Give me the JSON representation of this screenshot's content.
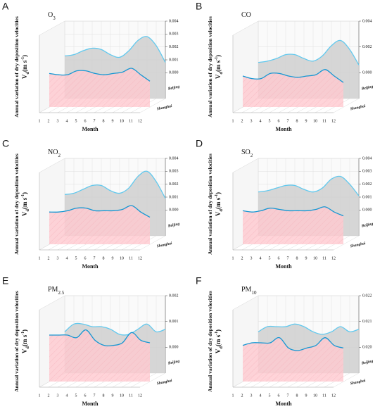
{
  "chart_data": [
    {
      "type": "line",
      "panel": "A",
      "title": {
        "text": "O",
        "sub": "3"
      },
      "xlabel": "Month",
      "ylabel": "Annual variation of dry deposition velocities",
      "zlabel": {
        "text": "V",
        "sub": "d",
        "unit": "(m s",
        "sup": "-1",
        "close": ")"
      },
      "categories": [
        1,
        2,
        3,
        4,
        5,
        6,
        7,
        8,
        9,
        10,
        11,
        12
      ],
      "series": [
        {
          "name": "Beijing",
          "color": "#62c9ee",
          "fill": "#cfcfcf",
          "values": [
            0.0013,
            0.0014,
            0.0017,
            0.0019,
            0.0018,
            0.0014,
            0.0012,
            0.0017,
            0.0025,
            0.0028,
            0.0021,
            0.0008
          ]
        },
        {
          "name": "Shanghai",
          "color": "#1597d3",
          "fill": "#ffc9cf",
          "values": [
            0.0006,
            0.0005,
            0.0005,
            0.0008,
            0.0008,
            0.0006,
            0.0005,
            0.0006,
            0.0007,
            0.001,
            0.0005,
            0.0
          ]
        }
      ],
      "ylim": [
        -0.002,
        0.004
      ],
      "yticks": [
        {
          "value": 0,
          "label": "0.000"
        },
        {
          "value": 0.001,
          "label": "0.001"
        },
        {
          "value": 0.002,
          "label": "0.002"
        },
        {
          "value": 0.003,
          "label": "0.003"
        },
        {
          "value": 0.004,
          "label": "0.004"
        }
      ]
    },
    {
      "type": "line",
      "panel": "B",
      "title": {
        "text": "CO"
      },
      "xlabel": "Month",
      "ylabel": "Annual variation of dry deposition velocities",
      "zlabel": {
        "text": "V",
        "sub": "d",
        "unit": "(m s",
        "sup": "-1",
        "close": ")"
      },
      "categories": [
        1,
        2,
        3,
        4,
        5,
        6,
        7,
        8,
        9,
        10,
        11,
        12
      ],
      "series": [
        {
          "name": "Beijing",
          "color": "#62c9ee",
          "fill": "#cfcfcf",
          "values": [
            0.0008,
            0.0009,
            0.0011,
            0.0014,
            0.0014,
            0.0011,
            0.0009,
            0.0013,
            0.0021,
            0.0025,
            0.0018,
            0.0006
          ]
        },
        {
          "name": "Shanghai",
          "color": "#1597d3",
          "fill": "#ffc9cf",
          "values": [
            0.0004,
            0.0002,
            0.0002,
            0.0006,
            0.0006,
            0.0004,
            0.0003,
            0.0004,
            0.0005,
            0.0009,
            0.0004,
            -0.0001
          ]
        }
      ],
      "ylim": [
        -0.002,
        0.004
      ],
      "yticks": [
        {
          "value": 0,
          "label": "0.000"
        },
        {
          "value": 0.002,
          "label": "0.002"
        },
        {
          "value": 0.004,
          "label": "0.004"
        }
      ]
    },
    {
      "type": "line",
      "panel": "C",
      "title": {
        "text": "NO",
        "sub": "2"
      },
      "xlabel": "Month",
      "ylabel": "Annual variation of dry deposition velocities",
      "zlabel": {
        "text": "V",
        "sub": "d",
        "unit": "(m s",
        "sup": "-1",
        "close": ")"
      },
      "categories": [
        1,
        2,
        3,
        4,
        5,
        6,
        7,
        8,
        9,
        10,
        11,
        12
      ],
      "series": [
        {
          "name": "Beijing",
          "color": "#62c9ee",
          "fill": "#cfcfcf",
          "values": [
            0.0012,
            0.0013,
            0.0016,
            0.0019,
            0.0019,
            0.0015,
            0.0013,
            0.0017,
            0.0026,
            0.003,
            0.0022,
            0.0009
          ]
        },
        {
          "name": "Shanghai",
          "color": "#1597d3",
          "fill": "#ffc9cf",
          "values": [
            0.0005,
            0.0005,
            0.0006,
            0.0008,
            0.0008,
            0.0006,
            0.0006,
            0.0006,
            0.0007,
            0.001,
            0.0005,
            0.0001
          ]
        }
      ],
      "ylim": [
        -0.002,
        0.004
      ],
      "yticks": [
        {
          "value": 0,
          "label": "0.000"
        },
        {
          "value": 0.001,
          "label": "0.001"
        },
        {
          "value": 0.002,
          "label": "0.002"
        },
        {
          "value": 0.003,
          "label": "0.003"
        },
        {
          "value": 0.004,
          "label": "0.004"
        }
      ]
    },
    {
      "type": "line",
      "panel": "D",
      "title": {
        "text": "SO",
        "sub": "2"
      },
      "xlabel": "Month",
      "ylabel": "Annual variation of dry deposition velocities",
      "zlabel": {
        "text": "V",
        "sub": "d",
        "unit": "(m s",
        "sup": "-1",
        "close": ")"
      },
      "categories": [
        1,
        2,
        3,
        4,
        5,
        6,
        7,
        8,
        9,
        10,
        11,
        12
      ],
      "series": [
        {
          "name": "Beijing",
          "color": "#62c9ee",
          "fill": "#cfcfcf",
          "values": [
            0.0014,
            0.0015,
            0.0017,
            0.0019,
            0.0019,
            0.0016,
            0.0014,
            0.0017,
            0.0024,
            0.0026,
            0.002,
            0.0011
          ]
        },
        {
          "name": "Shanghai",
          "color": "#1597d3",
          "fill": "#ffc9cf",
          "values": [
            0.0006,
            0.0005,
            0.0006,
            0.0008,
            0.0007,
            0.0006,
            0.0006,
            0.0006,
            0.0007,
            0.0009,
            0.0005,
            0.0002
          ]
        }
      ],
      "ylim": [
        -0.002,
        0.004
      ],
      "yticks": [
        {
          "value": 0,
          "label": "0.000"
        },
        {
          "value": 0.001,
          "label": "0.001"
        },
        {
          "value": 0.002,
          "label": "0.002"
        },
        {
          "value": 0.003,
          "label": "0.003"
        },
        {
          "value": 0.004,
          "label": "0.004"
        }
      ]
    },
    {
      "type": "line",
      "panel": "E",
      "title": {
        "text": "PM",
        "sub": "2.5"
      },
      "xlabel": "Month",
      "ylabel": "Annual variation of dry deposition velocities",
      "zlabel": {
        "text": "V",
        "sub": "d",
        "unit": "(m s",
        "sup": "-1",
        "close": ")"
      },
      "categories": [
        1,
        2,
        3,
        4,
        5,
        6,
        7,
        8,
        9,
        10,
        11,
        12
      ],
      "series": [
        {
          "name": "Beijing",
          "color": "#62c9ee",
          "fill": "#cfcfcf",
          "values": [
            0.0006,
            0.0009,
            0.0009,
            0.0008,
            0.0008,
            0.0007,
            0.0005,
            0.0005,
            0.0007,
            0.0009,
            0.0006,
            0.0007
          ]
        },
        {
          "name": "Shanghai",
          "color": "#1597d3",
          "fill": "#ffc9cf",
          "values": [
            0.0008,
            0.0008,
            0.0008,
            0.0007,
            0.001,
            0.0006,
            0.0004,
            0.0004,
            0.0005,
            0.0009,
            0.0006,
            0.0005
          ]
        }
      ],
      "ylim": [
        -0.001,
        0.002
      ],
      "yticks": [
        {
          "value": 0,
          "label": "0.000"
        },
        {
          "value": 0.001,
          "label": "0.001"
        },
        {
          "value": 0.002,
          "label": "0.002"
        }
      ]
    },
    {
      "type": "line",
      "panel": "F",
      "title": {
        "text": "PM",
        "sub": "10"
      },
      "xlabel": "Month",
      "ylabel": "Annual variation of dry deposition velocities",
      "zlabel": {
        "text": "V",
        "sub": "d",
        "unit": "(m s",
        "sup": "-1",
        "close": ")"
      },
      "categories": [
        1,
        2,
        3,
        4,
        5,
        6,
        7,
        8,
        9,
        10,
        11,
        12
      ],
      "series": [
        {
          "name": "Beijing",
          "color": "#62c9ee",
          "fill": "#cfcfcf",
          "values": [
            0.0206,
            0.0208,
            0.0208,
            0.0208,
            0.0209,
            0.0208,
            0.0206,
            0.0205,
            0.0206,
            0.0208,
            0.0206,
            0.0207
          ]
        },
        {
          "name": "Shanghai",
          "color": "#1597d3",
          "fill": "#ffc9cf",
          "values": [
            0.0204,
            0.0205,
            0.0205,
            0.0205,
            0.0207,
            0.0203,
            0.0202,
            0.0203,
            0.0204,
            0.0207,
            0.0204,
            0.0203
          ]
        }
      ],
      "ylim": [
        0.019,
        0.022
      ],
      "yticks": [
        {
          "value": 0.02,
          "label": "0.020"
        },
        {
          "value": 0.021,
          "label": "0.021"
        },
        {
          "value": 0.022,
          "label": "0.022"
        }
      ]
    }
  ]
}
